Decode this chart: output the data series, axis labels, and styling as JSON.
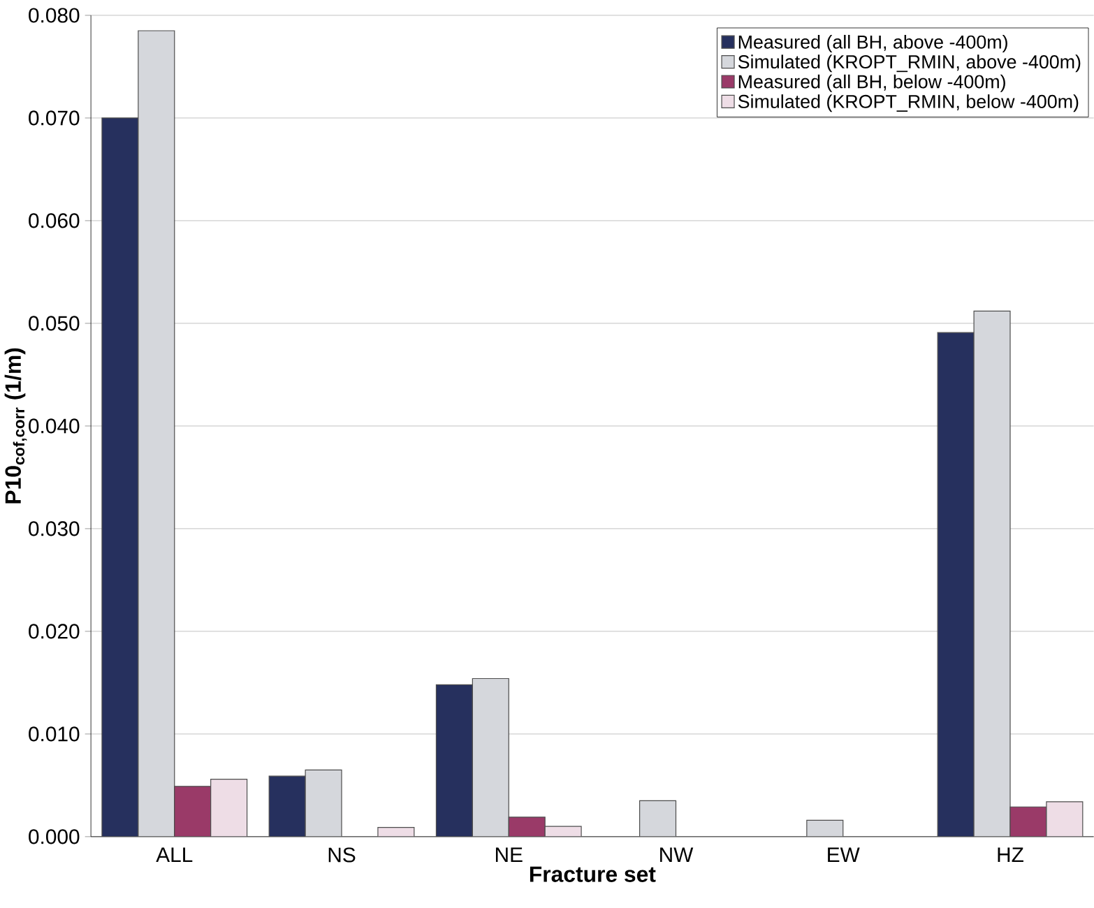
{
  "chart_data": {
    "type": "bar",
    "xlabel": "Fracture set",
    "ylabel": "P10$_{cof,corr}$ (1/m)",
    "categories": [
      "ALL",
      "NS",
      "NE",
      "NW",
      "EW",
      "HZ"
    ],
    "series": [
      {
        "name": "Measured (all BH, above -400m)",
        "color": "#26305e",
        "values": [
          0.07,
          0.0059,
          0.0148,
          null,
          null,
          0.0491
        ]
      },
      {
        "name": "Simulated (KROPT_RMIN, above -400m)",
        "color": "#d5d7dc",
        "values": [
          0.0785,
          0.0065,
          0.0154,
          0.0035,
          0.0016,
          0.0512
        ]
      },
      {
        "name": "Measured (all BH, below -400m)",
        "color": "#9a3a68",
        "values": [
          0.0049,
          null,
          0.0019,
          null,
          null,
          0.0029
        ]
      },
      {
        "name": "Simulated (KROPT_RMIN, below -400m)",
        "color": "#eedde6",
        "values": [
          0.0056,
          0.0009,
          0.001,
          null,
          null,
          0.0034
        ]
      }
    ],
    "ylim": [
      0,
      0.08
    ],
    "yticks": [
      {
        "value": 0,
        "label": "0.000"
      },
      {
        "value": 0.01,
        "label": "0.010"
      },
      {
        "value": 0.02,
        "label": "0.020"
      },
      {
        "value": 0.03,
        "label": "0.030"
      },
      {
        "value": 0.04,
        "label": "0.040"
      },
      {
        "value": 0.05,
        "label": "0.050"
      },
      {
        "value": 0.06,
        "label": "0.060"
      },
      {
        "value": 0.07,
        "label": "0.070"
      },
      {
        "value": 0.08,
        "label": "0.080"
      }
    ],
    "grid": "y",
    "legend": "top right"
  }
}
